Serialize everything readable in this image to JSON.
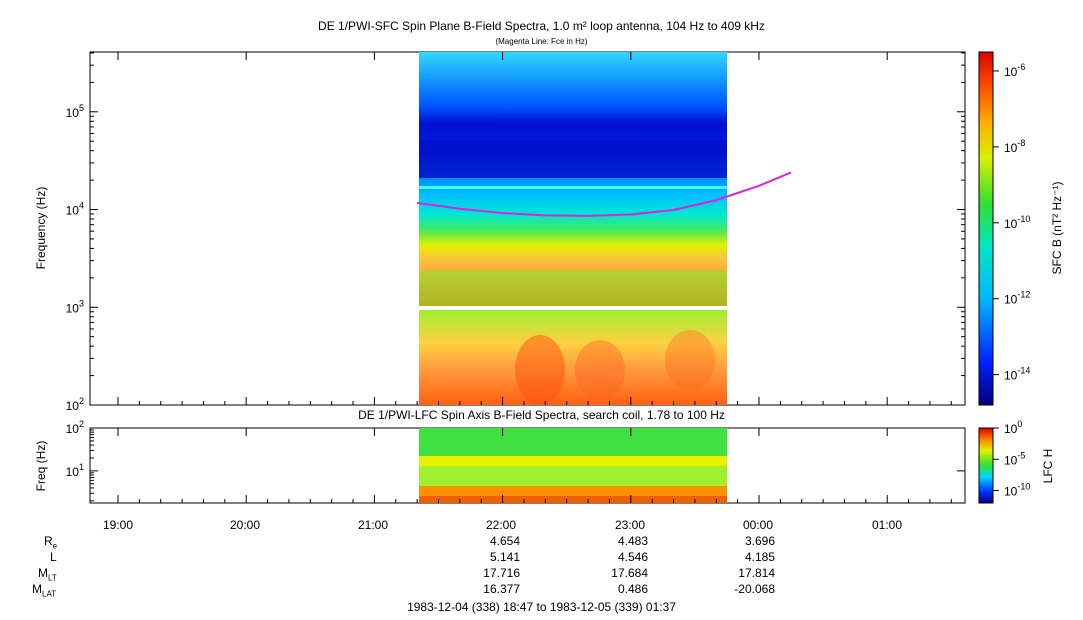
{
  "top_title": "DE 1/PWI-SFC  Spin Plane B-Field Spectra, 1.0 m² loop antenna, 104 Hz to 409 kHz",
  "top_subtitle": "(Magenta Line: Fce in Hz)",
  "bottom_title": "DE 1/PWI-LFC  Spin Axis B-Field Spectra, search coil, 1.78 to 100 Hz",
  "colors": {
    "magenta": "#e020e0",
    "accent_bg": "#ffffff"
  },
  "chart_data": [
    {
      "type": "heatmap",
      "title": "DE 1/PWI-SFC  Spin Plane B-Field Spectra, 1.0 m² loop antenna, 104 Hz to 409 kHz",
      "ylabel": "Frequency (Hz)",
      "yscale": "log",
      "ylim": [
        100,
        409000
      ],
      "y_ticks": [
        "10^2",
        "10^3",
        "10^4",
        "10^5"
      ],
      "data_time_range": [
        "21:22",
        "23:42"
      ],
      "colorbar": {
        "label": "SFC B (nT² Hz⁻¹)",
        "scale": "log",
        "ticks": [
          "10^-14",
          "10^-12",
          "10^-10",
          "10^-8",
          "10^-6"
        ]
      },
      "fce_line": {
        "name": "Fce in Hz",
        "color": "#e020e0",
        "time": [
          "21:20",
          "21:40",
          "22:00",
          "22:20",
          "22:40",
          "23:00",
          "23:20",
          "23:40",
          "24:00",
          "24:15"
        ],
        "freq_hz": [
          11700,
          10200,
          9200,
          8700,
          8600,
          8900,
          9900,
          12500,
          17500,
          24000
        ]
      }
    },
    {
      "type": "heatmap",
      "title": "DE 1/PWI-LFC  Spin Axis B-Field Spectra, search coil, 1.78 to 100 Hz",
      "ylabel": "Freq (Hz)",
      "yscale": "log",
      "ylim": [
        1.78,
        100
      ],
      "y_ticks": [
        "10^1",
        "10^2"
      ],
      "colorbar": {
        "label": "LFC H",
        "scale": "log",
        "ticks": [
          "10^-10",
          "10^-5",
          "10^0"
        ]
      }
    }
  ],
  "x_axis": {
    "ticks": [
      "19:00",
      "20:00",
      "21:00",
      "22:00",
      "23:00",
      "00:00",
      "01:00"
    ]
  },
  "ephemeris": {
    "labels": [
      {
        "main": "R",
        "sub": "e"
      },
      {
        "main": "L",
        "sub": ""
      },
      {
        "main": "M",
        "sub": "LT"
      },
      {
        "main": "M",
        "sub": "LAT"
      }
    ],
    "columns": [
      "22:00",
      "23:00",
      "00:00"
    ],
    "values": [
      [
        "4.654",
        "4.483",
        "3.696"
      ],
      [
        "5.141",
        "4.546",
        "4.185"
      ],
      [
        "17.716",
        "17.684",
        "17.814"
      ],
      [
        "16.377",
        "0.486",
        "-20.068"
      ]
    ]
  },
  "footer": "1983-12-04 (338) 18:47 to 1983-12-05 (339) 01:37"
}
